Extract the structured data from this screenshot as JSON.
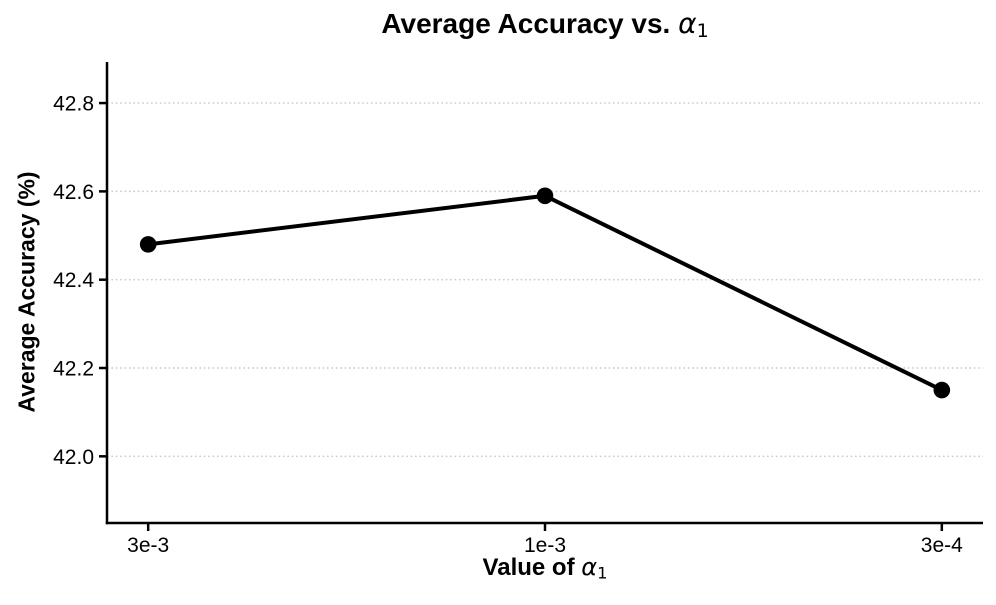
{
  "figure": {
    "title": {
      "prefix": "Average Accuracy vs. ",
      "symbol": "α",
      "subscript": "1"
    },
    "xlabel": {
      "prefix": "Value of ",
      "symbol": "α",
      "subscript": "1"
    },
    "ylabel": "Average Accuracy (%)"
  },
  "chart_data": {
    "type": "line",
    "title": "Average Accuracy vs. α₁",
    "xlabel": "Value of α₁",
    "ylabel": "Average Accuracy (%)",
    "categories": [
      "3e-3",
      "1e-3",
      "3e-4"
    ],
    "series": [
      {
        "name": "Average Accuracy",
        "values": [
          42.48,
          42.59,
          42.15
        ]
      }
    ],
    "ytick_labels": [
      "42.0",
      "42.2",
      "42.4",
      "42.6",
      "42.8"
    ],
    "yticks": [
      42.0,
      42.2,
      42.4,
      42.6,
      42.8
    ],
    "ylim": [
      41.849,
      42.893
    ],
    "grid": {
      "axis": "y",
      "style": "dotted",
      "color": "#c8c8c8"
    },
    "line": {
      "color": "#000000",
      "width": 4
    },
    "marker": {
      "shape": "circle",
      "color": "#000000",
      "radius": 8.3
    },
    "axis_color": "#000000",
    "legend": "none",
    "background": "#ffffff"
  }
}
